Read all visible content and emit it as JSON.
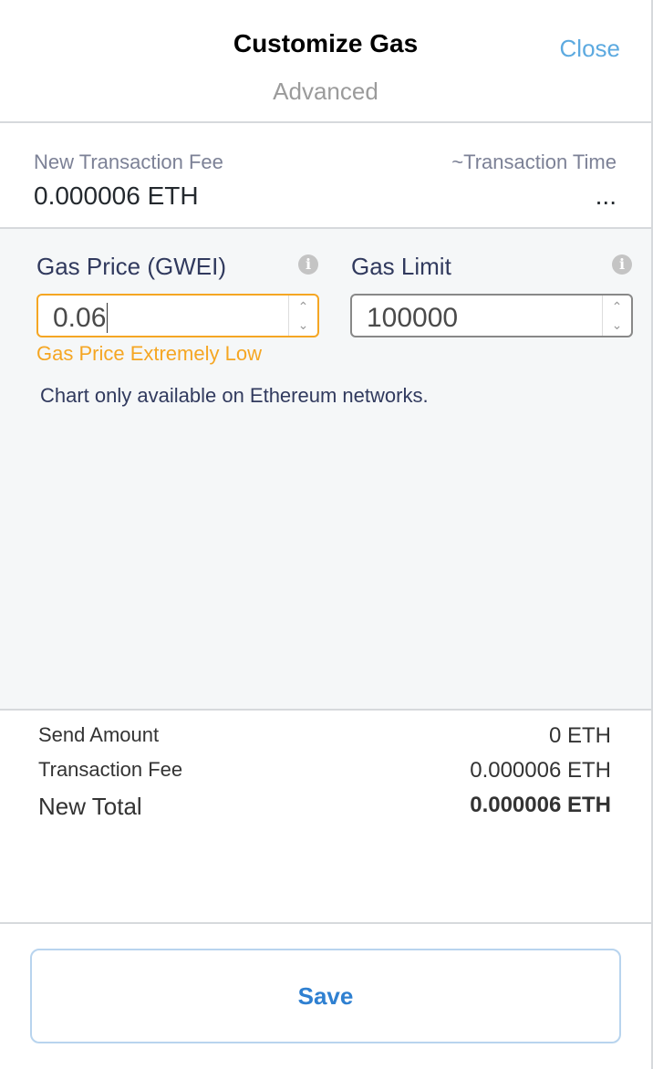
{
  "header": {
    "title": "Customize Gas",
    "subtitle": "Advanced",
    "close_label": "Close"
  },
  "fee": {
    "new_fee_label": "New Transaction Fee",
    "new_fee_value": "0.000006 ETH",
    "time_label": "~Transaction Time",
    "time_value": "..."
  },
  "advanced": {
    "gas_price": {
      "label": "Gas Price (GWEI)",
      "value": "0.06",
      "warning": "Gas Price Extremely Low"
    },
    "gas_limit": {
      "label": "Gas Limit",
      "value": "100000"
    },
    "chart_notice": "Chart only available on Ethereum networks."
  },
  "summary": {
    "send_amount_label": "Send Amount",
    "send_amount_value": "0 ETH",
    "fee_label": "Transaction Fee",
    "fee_value": "0.000006 ETH",
    "total_label": "New Total",
    "total_value": "0.000006 ETH"
  },
  "footer": {
    "save_label": "Save"
  },
  "colors": {
    "accent": "#5daae0",
    "warning": "#f5a623",
    "save": "#2f80d1"
  }
}
